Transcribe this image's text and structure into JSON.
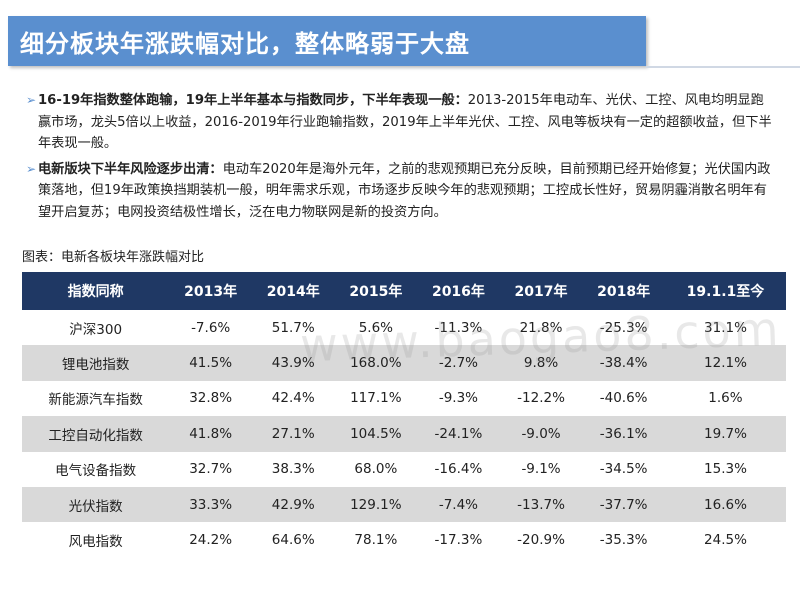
{
  "title": "细分板块年涨跌幅对比，整体略弱于大盘",
  "bullets": [
    {
      "marker": "➢",
      "lead": "16-19年指数整体跑输，19年上半年基本与指数同步，下半年表现一般：",
      "text": "2013-2015年电动车、光伏、工控、风电均明显跑赢市场，龙头5倍以上收益，2016-2019年行业跑输指数，2019年上半年光伏、工控、风电等板块有一定的超额收益，但下半年表现一般。"
    },
    {
      "marker": "➢",
      "lead": "电新版块下半年风险逐步出清：",
      "text": "电动车2020年是海外元年，之前的悲观预期已充分反映，目前预期已经开始修复；光伏国内政策落地，但19年政策换挡期装机一般，明年需求乐观，市场逐步反映今年的悲观预期；工控成长性好，贸易阴霾消散名明年有望开启复苏；电网投资结极性增长，泛在电力物联网是新的投资方向。"
    }
  ],
  "caption": "图表：电新各板块年涨跌幅对比",
  "watermark": "www.baogao8.com",
  "colors": {
    "title_bg": "#5a8fcf",
    "header_bg": "#1f3864",
    "stripe": "#d9d9d9"
  },
  "table": {
    "headers": [
      "指数同称",
      "2013年",
      "2014年",
      "2015年",
      "2016年",
      "2017年",
      "2018年",
      "19.1.1至今"
    ],
    "rows": [
      [
        "沪深300",
        "-7.6%",
        "51.7%",
        "5.6%",
        "-11.3%",
        "21.8%",
        "-25.3%",
        "31.1%"
      ],
      [
        "锂电池指数",
        "41.5%",
        "43.9%",
        "168.0%",
        "-2.7%",
        "9.8%",
        "-38.4%",
        "12.1%"
      ],
      [
        "新能源汽车指数",
        "32.8%",
        "42.4%",
        "117.1%",
        "-9.3%",
        "-12.2%",
        "-40.6%",
        "1.6%"
      ],
      [
        "工控自动化指数",
        "41.8%",
        "27.1%",
        "104.5%",
        "-24.1%",
        "-9.0%",
        "-36.1%",
        "19.7%"
      ],
      [
        "电气设备指数",
        "32.7%",
        "38.3%",
        "68.0%",
        "-16.4%",
        "-9.1%",
        "-34.5%",
        "15.3%"
      ],
      [
        "光伏指数",
        "33.3%",
        "42.9%",
        "129.1%",
        "-7.4%",
        "-13.7%",
        "-37.7%",
        "16.6%"
      ],
      [
        "风电指数",
        "24.2%",
        "64.6%",
        "78.1%",
        "-17.3%",
        "-20.9%",
        "-35.3%",
        "24.5%"
      ]
    ]
  }
}
